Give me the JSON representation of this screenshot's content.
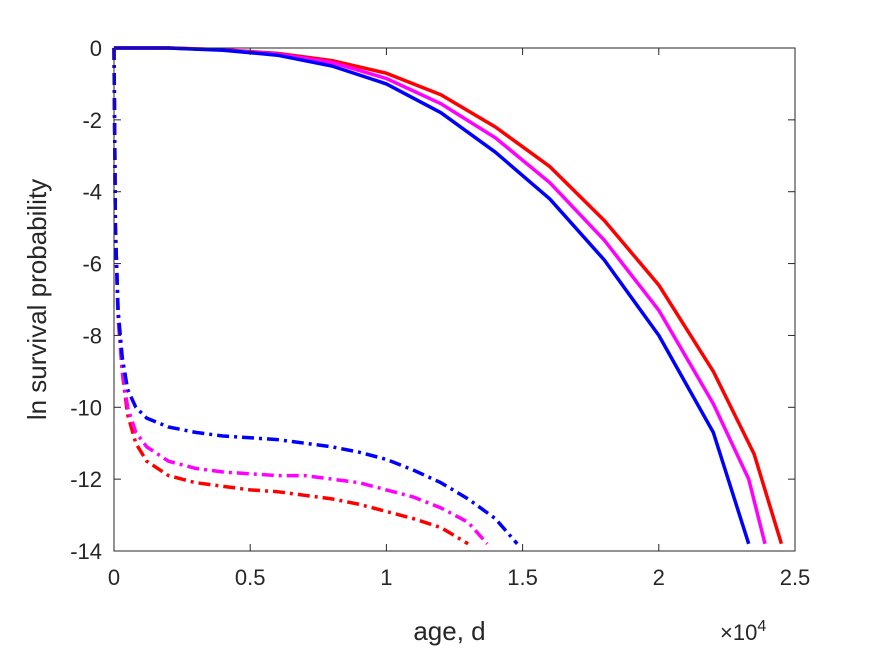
{
  "chart_data": {
    "type": "line",
    "xlabel": "age, d",
    "ylabel": "ln survival probability",
    "x_multiplier_label": "×10",
    "x_multiplier_exponent": "4",
    "xlim": [
      0,
      25000
    ],
    "ylim": [
      -14,
      0
    ],
    "x_ticks": [
      0,
      5000,
      10000,
      15000,
      20000,
      25000
    ],
    "x_tick_labels": [
      "0",
      "0.5",
      "1",
      "1.5",
      "2",
      "2.5"
    ],
    "y_ticks": [
      0,
      -2,
      -4,
      -6,
      -8,
      -10,
      -12,
      -14
    ],
    "y_tick_labels": [
      "0",
      "-2",
      "-4",
      "-6",
      "-8",
      "-10",
      "-12",
      "-14"
    ],
    "grid": false,
    "box": true,
    "series": [
      {
        "color": "#ff0000",
        "line": "solid",
        "points": [
          [
            0,
            0
          ],
          [
            2000,
            0
          ],
          [
            4000,
            -0.05
          ],
          [
            6000,
            -0.15
          ],
          [
            8000,
            -0.35
          ],
          [
            10000,
            -0.7
          ],
          [
            12000,
            -1.3
          ],
          [
            14000,
            -2.2
          ],
          [
            16000,
            -3.3
          ],
          [
            18000,
            -4.8
          ],
          [
            20000,
            -6.6
          ],
          [
            22000,
            -9.0
          ],
          [
            23500,
            -11.3
          ],
          [
            24500,
            -13.8
          ]
        ]
      },
      {
        "color": "#ff00ff",
        "line": "solid",
        "points": [
          [
            0,
            0
          ],
          [
            2000,
            0
          ],
          [
            4000,
            -0.05
          ],
          [
            6000,
            -0.17
          ],
          [
            8000,
            -0.4
          ],
          [
            10000,
            -0.85
          ],
          [
            12000,
            -1.55
          ],
          [
            14000,
            -2.5
          ],
          [
            16000,
            -3.75
          ],
          [
            18000,
            -5.35
          ],
          [
            20000,
            -7.3
          ],
          [
            22000,
            -9.9
          ],
          [
            23300,
            -12.0
          ],
          [
            23900,
            -13.8
          ]
        ]
      },
      {
        "color": "#0000ff",
        "line": "solid",
        "points": [
          [
            0,
            0
          ],
          [
            2000,
            0
          ],
          [
            4000,
            -0.06
          ],
          [
            6000,
            -0.2
          ],
          [
            8000,
            -0.5
          ],
          [
            10000,
            -1.0
          ],
          [
            12000,
            -1.8
          ],
          [
            14000,
            -2.9
          ],
          [
            16000,
            -4.2
          ],
          [
            18000,
            -5.9
          ],
          [
            20000,
            -8.0
          ],
          [
            22000,
            -10.7
          ],
          [
            23300,
            -13.8
          ]
        ]
      },
      {
        "color": "#ff0000",
        "line": "dashdot",
        "points": [
          [
            0,
            0
          ],
          [
            50,
            -5
          ],
          [
            150,
            -7.5
          ],
          [
            300,
            -9
          ],
          [
            500,
            -10.2
          ],
          [
            800,
            -11.0
          ],
          [
            1200,
            -11.5
          ],
          [
            2000,
            -11.9
          ],
          [
            3000,
            -12.1
          ],
          [
            4000,
            -12.2
          ],
          [
            5000,
            -12.3
          ],
          [
            6000,
            -12.35
          ],
          [
            7000,
            -12.45
          ],
          [
            8000,
            -12.55
          ],
          [
            9000,
            -12.7
          ],
          [
            10000,
            -12.9
          ],
          [
            11000,
            -13.1
          ],
          [
            12000,
            -13.35
          ],
          [
            13000,
            -13.8
          ]
        ]
      },
      {
        "color": "#ff00ff",
        "line": "dashdot",
        "points": [
          [
            0,
            0
          ],
          [
            50,
            -5
          ],
          [
            150,
            -7.4
          ],
          [
            300,
            -8.9
          ],
          [
            500,
            -10.0
          ],
          [
            800,
            -10.7
          ],
          [
            1200,
            -11.1
          ],
          [
            2000,
            -11.5
          ],
          [
            3000,
            -11.7
          ],
          [
            4000,
            -11.8
          ],
          [
            5000,
            -11.85
          ],
          [
            6000,
            -11.9
          ],
          [
            7000,
            -11.9
          ],
          [
            8000,
            -12.0
          ],
          [
            9000,
            -12.1
          ],
          [
            10000,
            -12.3
          ],
          [
            11000,
            -12.5
          ],
          [
            12000,
            -12.8
          ],
          [
            13000,
            -13.2
          ],
          [
            13700,
            -13.8
          ]
        ]
      },
      {
        "color": "#0000ff",
        "line": "dashdot",
        "points": [
          [
            0,
            0
          ],
          [
            50,
            -5
          ],
          [
            150,
            -7.3
          ],
          [
            300,
            -8.6
          ],
          [
            500,
            -9.5
          ],
          [
            800,
            -10.0
          ],
          [
            1200,
            -10.3
          ],
          [
            2000,
            -10.55
          ],
          [
            3000,
            -10.7
          ],
          [
            4000,
            -10.8
          ],
          [
            5000,
            -10.85
          ],
          [
            6000,
            -10.9
          ],
          [
            7000,
            -11.0
          ],
          [
            8000,
            -11.1
          ],
          [
            9000,
            -11.25
          ],
          [
            10000,
            -11.45
          ],
          [
            11000,
            -11.75
          ],
          [
            12000,
            -12.1
          ],
          [
            13000,
            -12.55
          ],
          [
            14000,
            -13.1
          ],
          [
            14800,
            -13.8
          ]
        ]
      }
    ]
  }
}
